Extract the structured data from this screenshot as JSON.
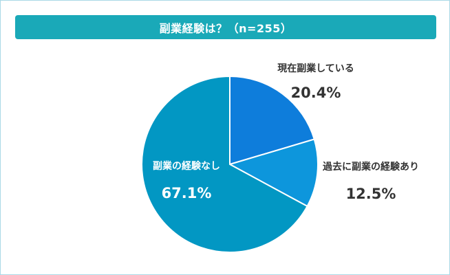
{
  "title": "副業経験は？（n=255）",
  "chart_data": {
    "type": "pie",
    "title": "副業経験は？（n=255）",
    "slices": [
      {
        "label": "現在副業している",
        "value": 20.4,
        "value_label": "20.4%",
        "color": "#0e7ddb"
      },
      {
        "label": "過去に副業の経験あり",
        "value": 12.5,
        "value_label": "12.5%",
        "color": "#0d96dc"
      },
      {
        "label": "副業の経験なし",
        "value": 67.1,
        "value_label": "67.1%",
        "color": "#0297c3"
      }
    ],
    "start_angle": "12 o'clock",
    "direction": "clockwise",
    "label_placement": [
      "outside",
      "outside",
      "inside"
    ]
  }
}
